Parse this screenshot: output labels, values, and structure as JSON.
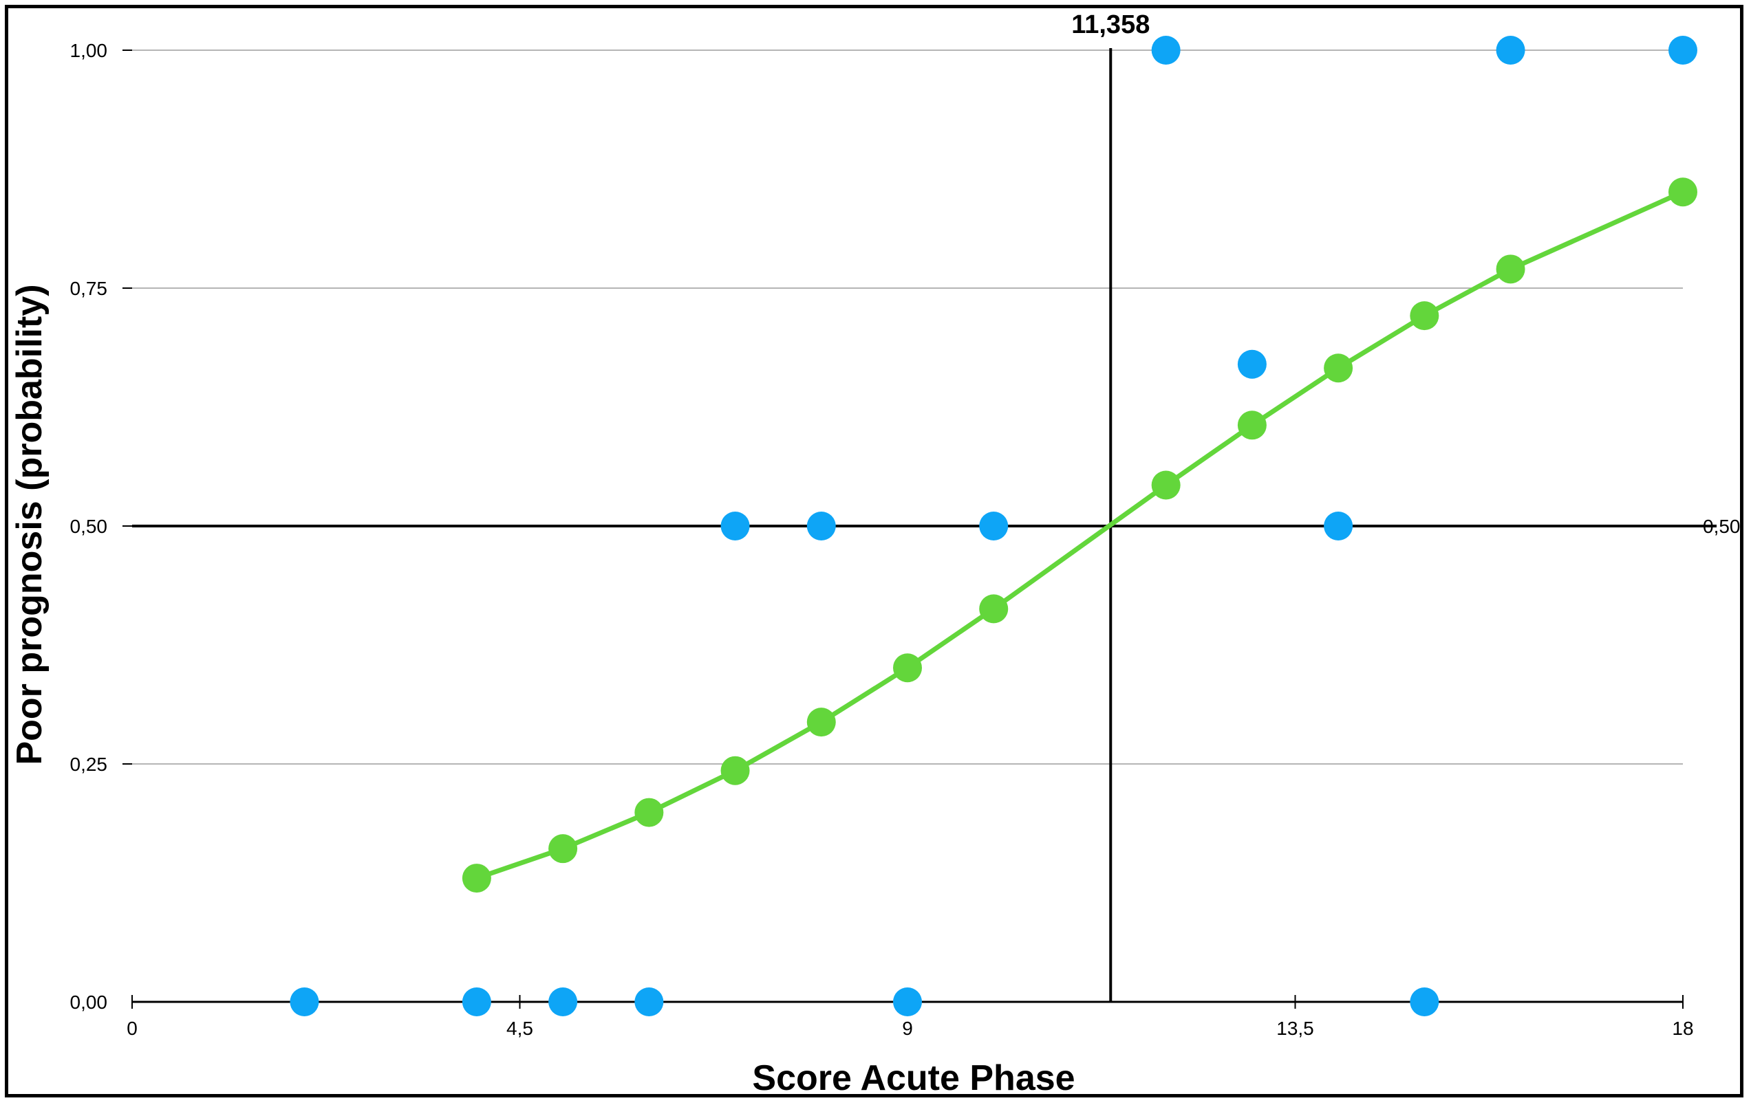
{
  "chart_data": {
    "type": "scatter",
    "xlabel": "Score Acute Phase",
    "ylabel": "Poor prognosis (probability)",
    "xlim": [
      0,
      18
    ],
    "ylim": [
      0,
      1
    ],
    "x_ticks": [
      {
        "value": 0,
        "label": "0"
      },
      {
        "value": 4.5,
        "label": "4,5"
      },
      {
        "value": 9,
        "label": "9"
      },
      {
        "value": 13.5,
        "label": "13,5"
      },
      {
        "value": 18,
        "label": "18"
      }
    ],
    "y_ticks": [
      {
        "value": 0,
        "label": "0,00"
      },
      {
        "value": 0.25,
        "label": "0,25"
      },
      {
        "value": 0.5,
        "label": "0,50"
      },
      {
        "value": 0.75,
        "label": "0,75"
      },
      {
        "value": 1,
        "label": "1,00"
      }
    ],
    "grid": true,
    "reference_lines": {
      "vertical": {
        "x": 11.358,
        "label": "11,358"
      },
      "horizontal": {
        "y": 0.5,
        "label": "0,50"
      }
    },
    "series": [
      {
        "kind": "observed",
        "color": "#0EA5F6",
        "points": [
          {
            "x": 2,
            "y": 0
          },
          {
            "x": 4,
            "y": 0
          },
          {
            "x": 5,
            "y": 0
          },
          {
            "x": 6,
            "y": 0
          },
          {
            "x": 9,
            "y": 0
          },
          {
            "x": 15,
            "y": 0
          },
          {
            "x": 7,
            "y": 0.5
          },
          {
            "x": 8,
            "y": 0.5
          },
          {
            "x": 10,
            "y": 0.5
          },
          {
            "x": 14,
            "y": 0.5
          },
          {
            "x": 13,
            "y": 0.67
          },
          {
            "x": 12,
            "y": 1
          },
          {
            "x": 16,
            "y": 1
          },
          {
            "x": 18,
            "y": 1
          }
        ]
      },
      {
        "kind": "fitted",
        "color": "#63D63B",
        "points": [
          {
            "x": 4,
            "y": 0.13
          },
          {
            "x": 5,
            "y": 0.161
          },
          {
            "x": 6,
            "y": 0.199
          },
          {
            "x": 7,
            "y": 0.243
          },
          {
            "x": 8,
            "y": 0.294
          },
          {
            "x": 9,
            "y": 0.351
          },
          {
            "x": 10,
            "y": 0.413
          },
          {
            "x": 12,
            "y": 0.543
          },
          {
            "x": 13,
            "y": 0.606
          },
          {
            "x": 14,
            "y": 0.666
          },
          {
            "x": 15,
            "y": 0.721
          },
          {
            "x": 16,
            "y": 0.77
          },
          {
            "x": 18,
            "y": 0.851
          }
        ]
      }
    ]
  }
}
